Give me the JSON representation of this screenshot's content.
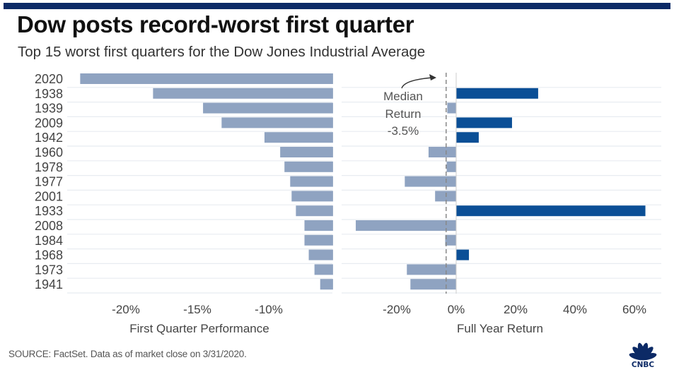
{
  "header": {
    "title": "Dow posts record-worst first quarter",
    "subtitle": "Top 15 worst first quarters for the Dow Jones Industrial Average"
  },
  "colors": {
    "topbar": "#0c2a66",
    "bar_light": "#8fa3c1",
    "bar_dark": "#0b4f96",
    "gridline": "#e8ecf1",
    "text": "#444444",
    "logo": "#0c2a66"
  },
  "chart_data": [
    {
      "type": "bar",
      "orientation": "horizontal",
      "title": "",
      "xlabel": "First Quarter Performance",
      "ylabel": "",
      "categories": [
        "2020",
        "1938",
        "1939",
        "2009",
        "1942",
        "1960",
        "1978",
        "1977",
        "2001",
        "1933",
        "2008",
        "1984",
        "1968",
        "1973",
        "1941"
      ],
      "values": [
        -23.2,
        -18.1,
        -14.6,
        -13.3,
        -10.3,
        -9.2,
        -8.9,
        -8.5,
        -8.4,
        -8.1,
        -7.5,
        -7.5,
        -7.2,
        -6.8,
        -6.4
      ],
      "baseline": -5.5,
      "xlim": [
        -24.5,
        -5.5
      ],
      "xticks": [
        -20,
        -15,
        -10
      ],
      "xtick_labels": [
        "-20%",
        "-15%",
        "-10%"
      ],
      "grid": true,
      "legend": "none"
    },
    {
      "type": "bar",
      "orientation": "horizontal",
      "title": "",
      "xlabel": "Full Year Return",
      "ylabel": "",
      "categories": [
        "2020",
        "1938",
        "1939",
        "2009",
        "1942",
        "1960",
        "1978",
        "1977",
        "2001",
        "1933",
        "2008",
        "1984",
        "1968",
        "1973",
        "1941"
      ],
      "values": [
        null,
        27.6,
        -3.0,
        18.8,
        7.6,
        -9.3,
        -3.2,
        -17.3,
        -7.1,
        63.7,
        -33.8,
        -3.7,
        4.3,
        -16.6,
        -15.4
      ],
      "xlim": [
        -39,
        69
      ],
      "xticks": [
        -20,
        0,
        20,
        40,
        60
      ],
      "xtick_labels": [
        "-20%",
        "0%",
        "20%",
        "40%",
        "60%"
      ],
      "grid": true,
      "legend": "none",
      "annotation": {
        "lines": [
          "Median",
          "Return",
          "-3.5%"
        ],
        "median_value": -3.5
      }
    }
  ],
  "footer": {
    "source": "SOURCE: FactSet. Data as of market close on 3/31/2020.",
    "logo_text": "CNBC",
    "logo_icon": "peacock-icon"
  }
}
